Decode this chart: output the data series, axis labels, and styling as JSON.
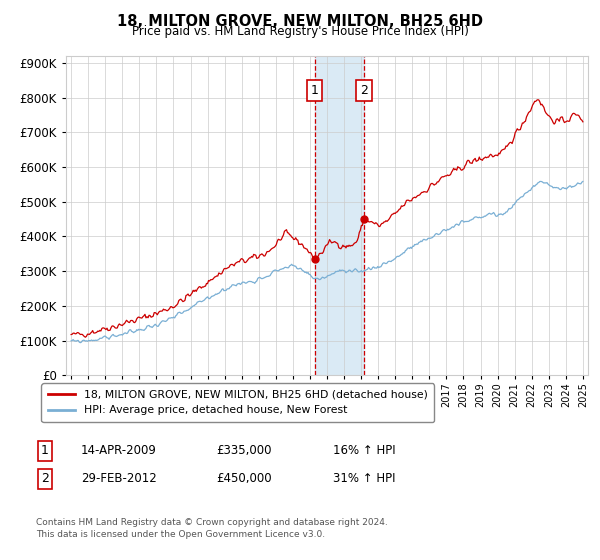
{
  "title": "18, MILTON GROVE, NEW MILTON, BH25 6HD",
  "subtitle": "Price paid vs. HM Land Registry's House Price Index (HPI)",
  "ylim": [
    0,
    900000
  ],
  "xlim_start": 1994.7,
  "xlim_end": 2025.3,
  "transaction1": {
    "date_num": 2009.28,
    "price": 335000,
    "label": "1",
    "pct": "16%",
    "date_str": "14-APR-2009"
  },
  "transaction2": {
    "date_num": 2012.17,
    "price": 450000,
    "label": "2",
    "pct": "31%",
    "date_str": "29-FEB-2012"
  },
  "legend_line1": "18, MILTON GROVE, NEW MILTON, BH25 6HD (detached house)",
  "legend_line2": "HPI: Average price, detached house, New Forest",
  "footnote": "Contains HM Land Registry data © Crown copyright and database right 2024.\nThis data is licensed under the Open Government Licence v3.0.",
  "line_color_red": "#cc0000",
  "line_color_blue": "#7aafd4",
  "highlight_color": "#daeaf5",
  "grid_color": "#cccccc",
  "background_color": "#ffffff",
  "prop_keypoints": [
    [
      1995.0,
      115000
    ],
    [
      1995.5,
      118000
    ],
    [
      1996.0,
      122000
    ],
    [
      1996.5,
      128000
    ],
    [
      1997.0,
      135000
    ],
    [
      1997.5,
      140000
    ],
    [
      1998.0,
      148000
    ],
    [
      1998.5,
      155000
    ],
    [
      1999.0,
      162000
    ],
    [
      1999.5,
      170000
    ],
    [
      2000.0,
      178000
    ],
    [
      2000.5,
      188000
    ],
    [
      2001.0,
      200000
    ],
    [
      2001.5,
      215000
    ],
    [
      2002.0,
      232000
    ],
    [
      2002.5,
      250000
    ],
    [
      2003.0,
      268000
    ],
    [
      2003.5,
      285000
    ],
    [
      2004.0,
      305000
    ],
    [
      2004.5,
      318000
    ],
    [
      2005.0,
      328000
    ],
    [
      2005.5,
      335000
    ],
    [
      2006.0,
      342000
    ],
    [
      2006.5,
      355000
    ],
    [
      2007.0,
      375000
    ],
    [
      2007.3,
      395000
    ],
    [
      2007.6,
      405000
    ],
    [
      2007.9,
      400000
    ],
    [
      2008.2,
      390000
    ],
    [
      2008.5,
      378000
    ],
    [
      2008.8,
      365000
    ],
    [
      2009.0,
      350000
    ],
    [
      2009.28,
      335000
    ],
    [
      2009.5,
      345000
    ],
    [
      2009.8,
      360000
    ],
    [
      2010.0,
      375000
    ],
    [
      2010.3,
      385000
    ],
    [
      2010.6,
      380000
    ],
    [
      2010.9,
      375000
    ],
    [
      2011.2,
      370000
    ],
    [
      2011.5,
      375000
    ],
    [
      2011.8,
      390000
    ],
    [
      2012.17,
      450000
    ],
    [
      2012.5,
      445000
    ],
    [
      2012.8,
      435000
    ],
    [
      2013.1,
      430000
    ],
    [
      2013.4,
      440000
    ],
    [
      2013.7,
      450000
    ],
    [
      2014.0,
      465000
    ],
    [
      2014.3,
      480000
    ],
    [
      2014.6,
      495000
    ],
    [
      2014.9,
      505000
    ],
    [
      2015.2,
      515000
    ],
    [
      2015.5,
      525000
    ],
    [
      2015.8,
      535000
    ],
    [
      2016.1,
      545000
    ],
    [
      2016.4,
      555000
    ],
    [
      2016.7,
      565000
    ],
    [
      2017.0,
      575000
    ],
    [
      2017.3,
      580000
    ],
    [
      2017.6,
      590000
    ],
    [
      2017.9,
      600000
    ],
    [
      2018.2,
      610000
    ],
    [
      2018.5,
      615000
    ],
    [
      2018.8,
      620000
    ],
    [
      2019.1,
      625000
    ],
    [
      2019.4,
      630000
    ],
    [
      2019.7,
      635000
    ],
    [
      2020.0,
      630000
    ],
    [
      2020.3,
      640000
    ],
    [
      2020.6,
      660000
    ],
    [
      2020.9,
      685000
    ],
    [
      2021.2,
      705000
    ],
    [
      2021.5,
      730000
    ],
    [
      2021.8,
      755000
    ],
    [
      2022.0,
      775000
    ],
    [
      2022.2,
      790000
    ],
    [
      2022.4,
      800000
    ],
    [
      2022.6,
      780000
    ],
    [
      2022.8,
      760000
    ],
    [
      2023.0,
      745000
    ],
    [
      2023.3,
      735000
    ],
    [
      2023.6,
      730000
    ],
    [
      2023.9,
      735000
    ],
    [
      2024.2,
      740000
    ],
    [
      2024.5,
      750000
    ],
    [
      2024.8,
      745000
    ],
    [
      2025.0,
      740000
    ]
  ],
  "hpi_keypoints": [
    [
      1995.0,
      96000
    ],
    [
      1995.5,
      98000
    ],
    [
      1996.0,
      100000
    ],
    [
      1996.5,
      103000
    ],
    [
      1997.0,
      108000
    ],
    [
      1997.5,
      113000
    ],
    [
      1998.0,
      118000
    ],
    [
      1998.5,
      124000
    ],
    [
      1999.0,
      130000
    ],
    [
      1999.5,
      138000
    ],
    [
      2000.0,
      146000
    ],
    [
      2000.5,
      155000
    ],
    [
      2001.0,
      165000
    ],
    [
      2001.5,
      178000
    ],
    [
      2002.0,
      192000
    ],
    [
      2002.5,
      208000
    ],
    [
      2003.0,
      222000
    ],
    [
      2003.5,
      235000
    ],
    [
      2004.0,
      248000
    ],
    [
      2004.5,
      258000
    ],
    [
      2005.0,
      265000
    ],
    [
      2005.5,
      270000
    ],
    [
      2006.0,
      278000
    ],
    [
      2006.5,
      288000
    ],
    [
      2007.0,
      300000
    ],
    [
      2007.5,
      310000
    ],
    [
      2007.9,
      315000
    ],
    [
      2008.3,
      308000
    ],
    [
      2008.7,
      298000
    ],
    [
      2009.0,
      288000
    ],
    [
      2009.3,
      280000
    ],
    [
      2009.6,
      278000
    ],
    [
      2009.9,
      282000
    ],
    [
      2010.2,
      290000
    ],
    [
      2010.5,
      298000
    ],
    [
      2010.8,
      300000
    ],
    [
      2011.1,
      298000
    ],
    [
      2011.4,
      295000
    ],
    [
      2011.7,
      297000
    ],
    [
      2012.0,
      300000
    ],
    [
      2012.3,
      305000
    ],
    [
      2012.6,
      308000
    ],
    [
      2012.9,
      312000
    ],
    [
      2013.2,
      318000
    ],
    [
      2013.5,
      325000
    ],
    [
      2013.8,
      332000
    ],
    [
      2014.1,
      340000
    ],
    [
      2014.4,
      350000
    ],
    [
      2014.7,
      360000
    ],
    [
      2015.0,
      370000
    ],
    [
      2015.3,
      378000
    ],
    [
      2015.6,
      385000
    ],
    [
      2015.9,
      392000
    ],
    [
      2016.2,
      400000
    ],
    [
      2016.5,
      408000
    ],
    [
      2016.8,
      415000
    ],
    [
      2017.1,
      422000
    ],
    [
      2017.4,
      428000
    ],
    [
      2017.7,
      435000
    ],
    [
      2018.0,
      440000
    ],
    [
      2018.3,
      445000
    ],
    [
      2018.6,
      450000
    ],
    [
      2018.9,
      455000
    ],
    [
      2019.2,
      460000
    ],
    [
      2019.5,
      463000
    ],
    [
      2019.8,
      465000
    ],
    [
      2020.1,
      460000
    ],
    [
      2020.4,
      468000
    ],
    [
      2020.7,
      480000
    ],
    [
      2021.0,
      495000
    ],
    [
      2021.3,
      508000
    ],
    [
      2021.6,
      520000
    ],
    [
      2021.9,
      535000
    ],
    [
      2022.2,
      550000
    ],
    [
      2022.5,
      560000
    ],
    [
      2022.8,
      555000
    ],
    [
      2023.1,
      545000
    ],
    [
      2023.4,
      538000
    ],
    [
      2023.7,
      535000
    ],
    [
      2024.0,
      538000
    ],
    [
      2024.3,
      545000
    ],
    [
      2024.6,
      550000
    ],
    [
      2024.9,
      548000
    ],
    [
      2025.0,
      550000
    ]
  ]
}
